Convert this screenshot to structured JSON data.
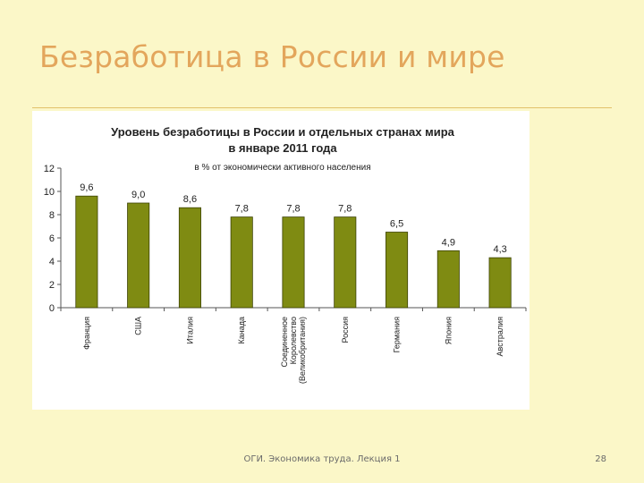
{
  "slide": {
    "title": "Безработица в России и мире",
    "footer": "ОГИ. Экономика труда. Лекция 1",
    "page_number": "28"
  },
  "colors": {
    "background": "#fbf7c8",
    "title": "#e3a65c",
    "bar": "#7f8b12",
    "bar_edge": "#3d4305"
  },
  "chart_data": {
    "type": "bar",
    "title": "Уровень безработицы в России и отдельных странах мира",
    "title_line2": "в январе 2011 года",
    "subtitle": "в % от экономически активного населения",
    "categories": [
      "Франция",
      "США",
      "Италия",
      "Канада",
      "Соединенное Королевство (Великобритания)",
      "Россия",
      "Германия",
      "Япония",
      "Австралия"
    ],
    "category_lines": [
      [
        "Франция"
      ],
      [
        "США"
      ],
      [
        "Италия"
      ],
      [
        "Канада"
      ],
      [
        "Соединенное",
        "Королевство",
        "(Великобритания)"
      ],
      [
        "Россия"
      ],
      [
        "Германия"
      ],
      [
        "Япония"
      ],
      [
        "Австралия"
      ]
    ],
    "values": [
      9.6,
      9.0,
      8.6,
      7.8,
      7.8,
      7.8,
      6.5,
      4.9,
      4.3
    ],
    "value_labels": [
      "9,6",
      "9,0",
      "8,6",
      "7,8",
      "7,8",
      "7,8",
      "6,5",
      "4,9",
      "4,3"
    ],
    "ylim": [
      0,
      12
    ],
    "yticks": [
      0,
      2,
      4,
      6,
      8,
      10,
      12
    ],
    "xlabel": "",
    "ylabel": "",
    "grid": false,
    "legend": "none"
  }
}
